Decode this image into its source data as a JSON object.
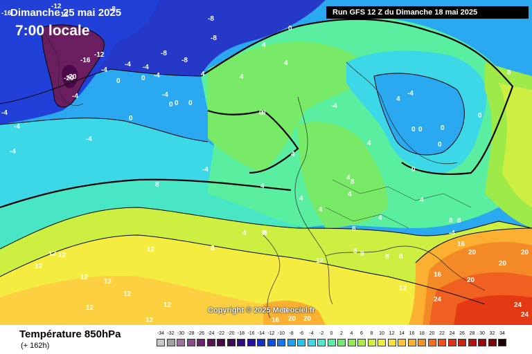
{
  "header": {
    "valid_date": "Dimanche 25 mai 2025",
    "valid_time": "7:00 locale",
    "run_info": "Run GFS 12 Z du Dimanche 18 mai 2025"
  },
  "copyright": "Copyright © 2025 Meteociel.fr",
  "footer": {
    "field_title": "Température 850hPa",
    "lead_time": "(+ 162h)"
  },
  "color_scale": {
    "ticks": [
      "-34",
      "-32",
      "-30",
      "-28",
      "-26",
      "-24",
      "-22",
      "-20",
      "-18",
      "-16",
      "-14",
      "-12",
      "-10",
      "-8",
      "-6",
      "-4",
      "-2",
      "0",
      "2",
      "4",
      "6",
      "8",
      "10",
      "12",
      "14",
      "16",
      "18",
      "20",
      "22",
      "24",
      "26",
      "28",
      "30",
      "32",
      "34"
    ],
    "colors": [
      "#c8c8c8",
      "#a0a0a0",
      "#a070a0",
      "#8a4a8a",
      "#702070",
      "#581058",
      "#4a0848",
      "#3c0a5a",
      "#300a80",
      "#2010a8",
      "#1030c8",
      "#1050e0",
      "#1478f0",
      "#1ea0f8",
      "#28c4f0",
      "#3cdce6",
      "#4cecc8",
      "#58f0a0",
      "#70ec70",
      "#90ec50",
      "#b0ec40",
      "#d0f040",
      "#eef040",
      "#fce040",
      "#fcc838",
      "#fcb030",
      "#f89028",
      "#f47020",
      "#f05018",
      "#e43010",
      "#d02010",
      "#b81010",
      "#9c0808",
      "#7c0404",
      "#200000"
    ]
  },
  "map_colors": {
    "far_north_purple": "#6a1e60",
    "deep_blue": "#2638c8",
    "blue": "#1a6ee8",
    "light_blue": "#2aa8f0",
    "cyan": "#3cd8e8",
    "aqua": "#48e6c4",
    "mint": "#5aeea0",
    "green": "#78ea68",
    "lime": "#9eea48",
    "yellow_green": "#cdef42",
    "yellow": "#f4ec40",
    "light_orange": "#fcd040",
    "orange": "#fbb032",
    "dark_orange": "#f48a26",
    "red_orange": "#f06020",
    "red": "#e43a14"
  },
  "isotherm_labels": [
    "-16",
    "-12",
    "-12",
    "-20",
    "-8",
    "-8",
    "-8",
    "-16",
    "-12",
    "-4",
    "-4",
    "-20",
    "-8",
    "-4",
    "-8",
    "-4",
    "0",
    "0",
    "0",
    "-4",
    "0",
    "0",
    "-4",
    "-4",
    "-4",
    "-4",
    "-4",
    "-4",
    "0",
    "4",
    "4",
    "4",
    "4",
    "0",
    "0",
    "0",
    "4",
    "4",
    "4",
    "4",
    "8",
    "8",
    "4",
    "4",
    "4",
    "4",
    "4",
    "8",
    "8",
    "8",
    "8",
    "8",
    "8",
    "8",
    "8",
    "4",
    "4",
    "0",
    "0",
    "0",
    "0",
    "0",
    "0",
    "-4",
    "-4",
    "-4",
    "8",
    "8",
    "8",
    "8",
    "12",
    "12",
    "12",
    "12",
    "12",
    "12",
    "12",
    "12",
    "12",
    "12",
    "12",
    "12",
    "16",
    "16",
    "20",
    "20",
    "20",
    "16",
    "20",
    "24",
    "24",
    "24",
    "20",
    "16",
    "20"
  ]
}
